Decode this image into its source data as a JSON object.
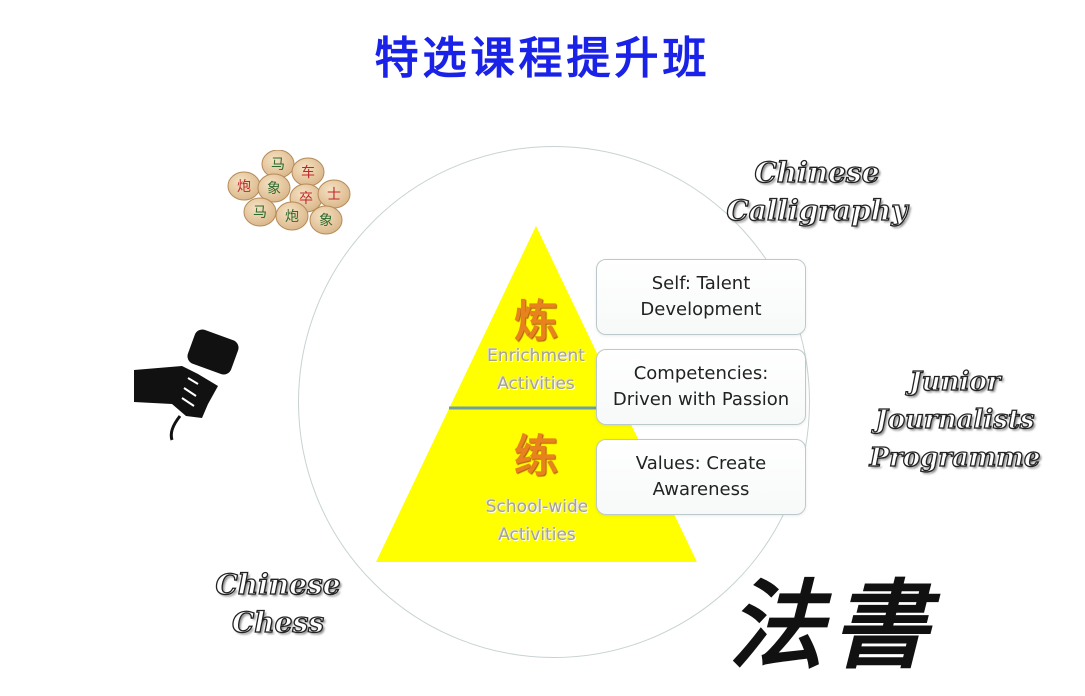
{
  "title": "特选课程提升班",
  "pyramid": {
    "top": {
      "char": "炼",
      "label": "Enrichment\nActivities"
    },
    "bottom": {
      "char": "练",
      "label": "School-wide\nActivities"
    },
    "fill_color": "#ffff00",
    "divider_color": "#6d9fa3"
  },
  "boxes": [
    {
      "text": "Self: Talent\nDevelopment"
    },
    {
      "text": "Competencies:\nDriven with Passion"
    },
    {
      "text": "Values: Create\nAwareness"
    }
  ],
  "side_labels": {
    "calligraphy": "Chinese\nCalligraphy",
    "journalists": "Junior Journalists\nProgramme",
    "chess": "Chinese\nChess"
  },
  "calligraphy_art": "法書",
  "chess_pieces": [
    "马",
    "车",
    "炮",
    "象",
    "卒",
    "士",
    "马",
    "炮",
    "象"
  ],
  "icons": {
    "chess": "chinese-chess-pieces-image",
    "microphone": "microphone-icon",
    "calligraphy": "calligraphy-artwork"
  }
}
